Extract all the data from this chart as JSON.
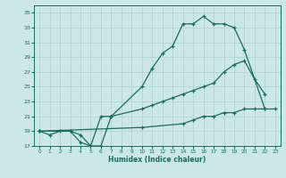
{
  "xlabel": "Humidex (Indice chaleur)",
  "bg_color": "#cce8e4",
  "grid_color": "#afd0cc",
  "line_color": "#1a6b5e",
  "xlim": [
    -0.5,
    23.5
  ],
  "ylim": [
    17,
    36
  ],
  "xticks": [
    0,
    1,
    2,
    3,
    4,
    5,
    6,
    7,
    8,
    9,
    10,
    11,
    12,
    13,
    14,
    15,
    16,
    17,
    18,
    19,
    20,
    21,
    22,
    23
  ],
  "yticks": [
    17,
    19,
    21,
    23,
    25,
    27,
    29,
    31,
    33,
    35
  ],
  "line1_x": [
    0,
    1,
    2,
    3,
    4,
    5,
    6,
    7,
    10,
    11,
    12,
    13,
    14,
    15,
    16,
    17,
    18,
    19,
    20,
    22
  ],
  "line1_y": [
    19,
    18.5,
    19,
    19,
    17.5,
    17,
    17,
    21,
    25.0,
    27.5,
    29.5,
    30.5,
    33.5,
    33.5,
    34.5,
    33.5,
    33.5,
    33.0,
    30.0,
    22.0
  ],
  "line2_x": [
    0,
    3,
    4,
    5,
    6,
    7,
    10,
    11,
    12,
    13,
    14,
    15,
    16,
    17,
    18,
    19,
    20,
    21,
    22
  ],
  "line2_y": [
    19,
    19,
    18.5,
    17,
    21,
    21,
    22.0,
    22.5,
    23.0,
    23.5,
    24.0,
    24.5,
    25.0,
    25.5,
    27.0,
    28.0,
    28.5,
    26.0,
    24.0
  ],
  "line3_x": [
    0,
    10,
    14,
    15,
    16,
    17,
    18,
    19,
    20,
    21,
    22,
    23
  ],
  "line3_y": [
    19,
    19.5,
    20.0,
    20.5,
    21.0,
    21.0,
    21.5,
    21.5,
    22.0,
    22.0,
    22.0,
    22.0
  ]
}
